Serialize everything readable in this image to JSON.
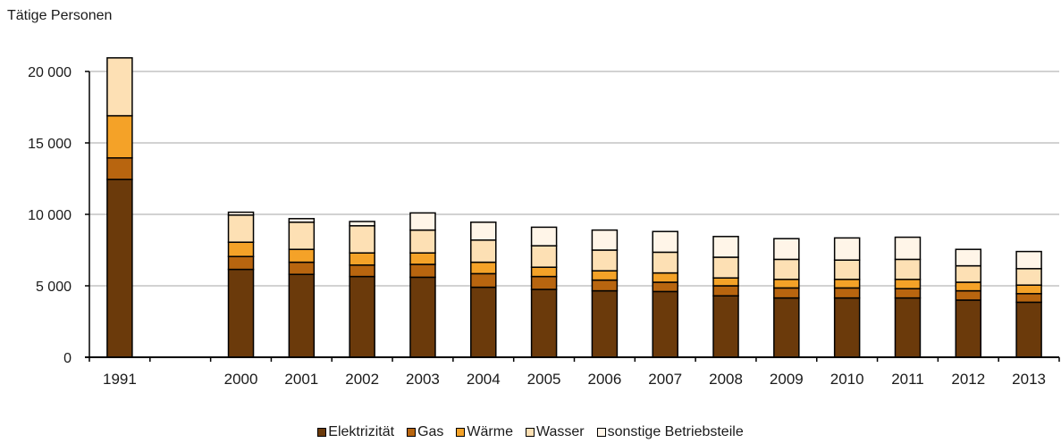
{
  "chart_data": {
    "type": "bar",
    "stacked": true,
    "ylabel": "Tätige Personen",
    "ylim": [
      0,
      20000
    ],
    "yticks": [
      0,
      5000,
      10000,
      15000,
      20000
    ],
    "ytick_labels": [
      "0",
      "5 000",
      "10 000",
      "15 000",
      "20 000"
    ],
    "grid": true,
    "legend_position": "bottom",
    "categories": [
      "1991",
      "",
      "2000",
      "2001",
      "2002",
      "2003",
      "2004",
      "2005",
      "2006",
      "2007",
      "2008",
      "2009",
      "2010",
      "2011",
      "2012",
      "2013"
    ],
    "series": [
      {
        "name": "Elektrizität",
        "color": "#6b3a0b",
        "values": [
          12450,
          null,
          6150,
          5800,
          5650,
          5600,
          4900,
          4750,
          4650,
          4600,
          4300,
          4150,
          4150,
          4150,
          4000,
          3850
        ]
      },
      {
        "name": "Gas",
        "color": "#b8650f",
        "values": [
          1500,
          null,
          900,
          850,
          800,
          900,
          950,
          900,
          750,
          650,
          700,
          700,
          700,
          650,
          650,
          600
        ]
      },
      {
        "name": "Wärme",
        "color": "#f4a228",
        "values": [
          2950,
          null,
          1000,
          900,
          850,
          800,
          800,
          650,
          650,
          650,
          550,
          600,
          600,
          650,
          600,
          600
        ]
      },
      {
        "name": "Wasser",
        "color": "#fde0b4",
        "values": [
          4050,
          null,
          1900,
          1900,
          1900,
          1600,
          1550,
          1500,
          1450,
          1450,
          1450,
          1400,
          1350,
          1400,
          1150,
          1150
        ]
      },
      {
        "name": "sonstige Betriebsteile",
        "color": "#fff5e8",
        "values": [
          0,
          null,
          200,
          250,
          300,
          1200,
          1250,
          1300,
          1400,
          1450,
          1450,
          1450,
          1550,
          1550,
          1150,
          1200
        ]
      }
    ]
  }
}
